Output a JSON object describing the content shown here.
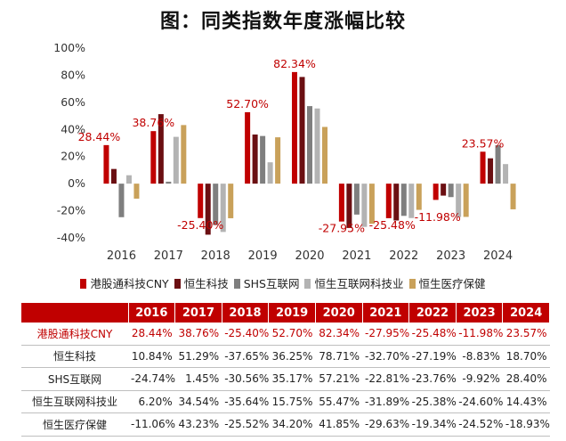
{
  "title": "图：同类指数年度涨幅比较",
  "chart_data": {
    "type": "bar",
    "categories": [
      "2016",
      "2017",
      "2018",
      "2019",
      "2020",
      "2021",
      "2022",
      "2023",
      "2024"
    ],
    "ylim": [
      -40,
      100
    ],
    "yticks": [
      "-40%",
      "-20%",
      "0%",
      "20%",
      "40%",
      "60%",
      "80%",
      "100%"
    ],
    "ytick_values": [
      -40,
      -20,
      0,
      20,
      40,
      60,
      80,
      100
    ],
    "grid": false,
    "legend_position": "bottom",
    "series": [
      {
        "name": "港股通科技CNY",
        "color": "#c00000",
        "values": [
          28.44,
          38.76,
          -25.4,
          52.7,
          82.34,
          -27.95,
          -25.48,
          -11.98,
          23.57
        ],
        "labels": [
          "28.44%",
          "38.76%",
          "-25.40%",
          "52.70%",
          "82.34%",
          "-27.95%",
          "-25.48%",
          "-11.98%",
          "23.57%"
        ]
      },
      {
        "name": "恒生科技",
        "color": "#6b0f12",
        "values": [
          10.84,
          51.29,
          -37.65,
          36.25,
          78.71,
          -32.7,
          -27.19,
          -8.83,
          18.7
        ],
        "labels": [
          "10.84%",
          "51.29%",
          "-37.65%",
          "36.25%",
          "78.71%",
          "-32.70%",
          "-27.19%",
          "-8.83%",
          "18.70%"
        ]
      },
      {
        "name": "SHS互联网",
        "color": "#7f7f7f",
        "values": [
          -24.74,
          1.45,
          -30.56,
          35.17,
          57.21,
          -22.81,
          -23.76,
          -9.92,
          28.4
        ],
        "labels": [
          "-24.74%",
          "1.45%",
          "-30.56%",
          "35.17%",
          "57.21%",
          "-22.81%",
          "-23.76%",
          "-9.92%",
          "28.40%"
        ]
      },
      {
        "name": "恒生互联网科技业",
        "color": "#b3b3b3",
        "values": [
          6.2,
          34.54,
          -35.64,
          15.75,
          55.47,
          -31.89,
          -25.38,
          -24.6,
          14.43
        ],
        "labels": [
          "6.20%",
          "34.54%",
          "-35.64%",
          "15.75%",
          "55.47%",
          "-31.89%",
          "-25.38%",
          "-24.60%",
          "14.43%"
        ]
      },
      {
        "name": "恒生医疗保健",
        "color": "#c9a15a",
        "values": [
          -11.06,
          43.23,
          -25.52,
          34.2,
          41.85,
          -29.63,
          -19.34,
          -24.52,
          -18.93
        ],
        "labels": [
          "-11.06%",
          "43.23%",
          "-25.52%",
          "34.20%",
          "41.85%",
          "-29.63%",
          "-19.34%",
          "-24.52%",
          "-18.93%"
        ]
      }
    ],
    "annotated_series": 0
  }
}
